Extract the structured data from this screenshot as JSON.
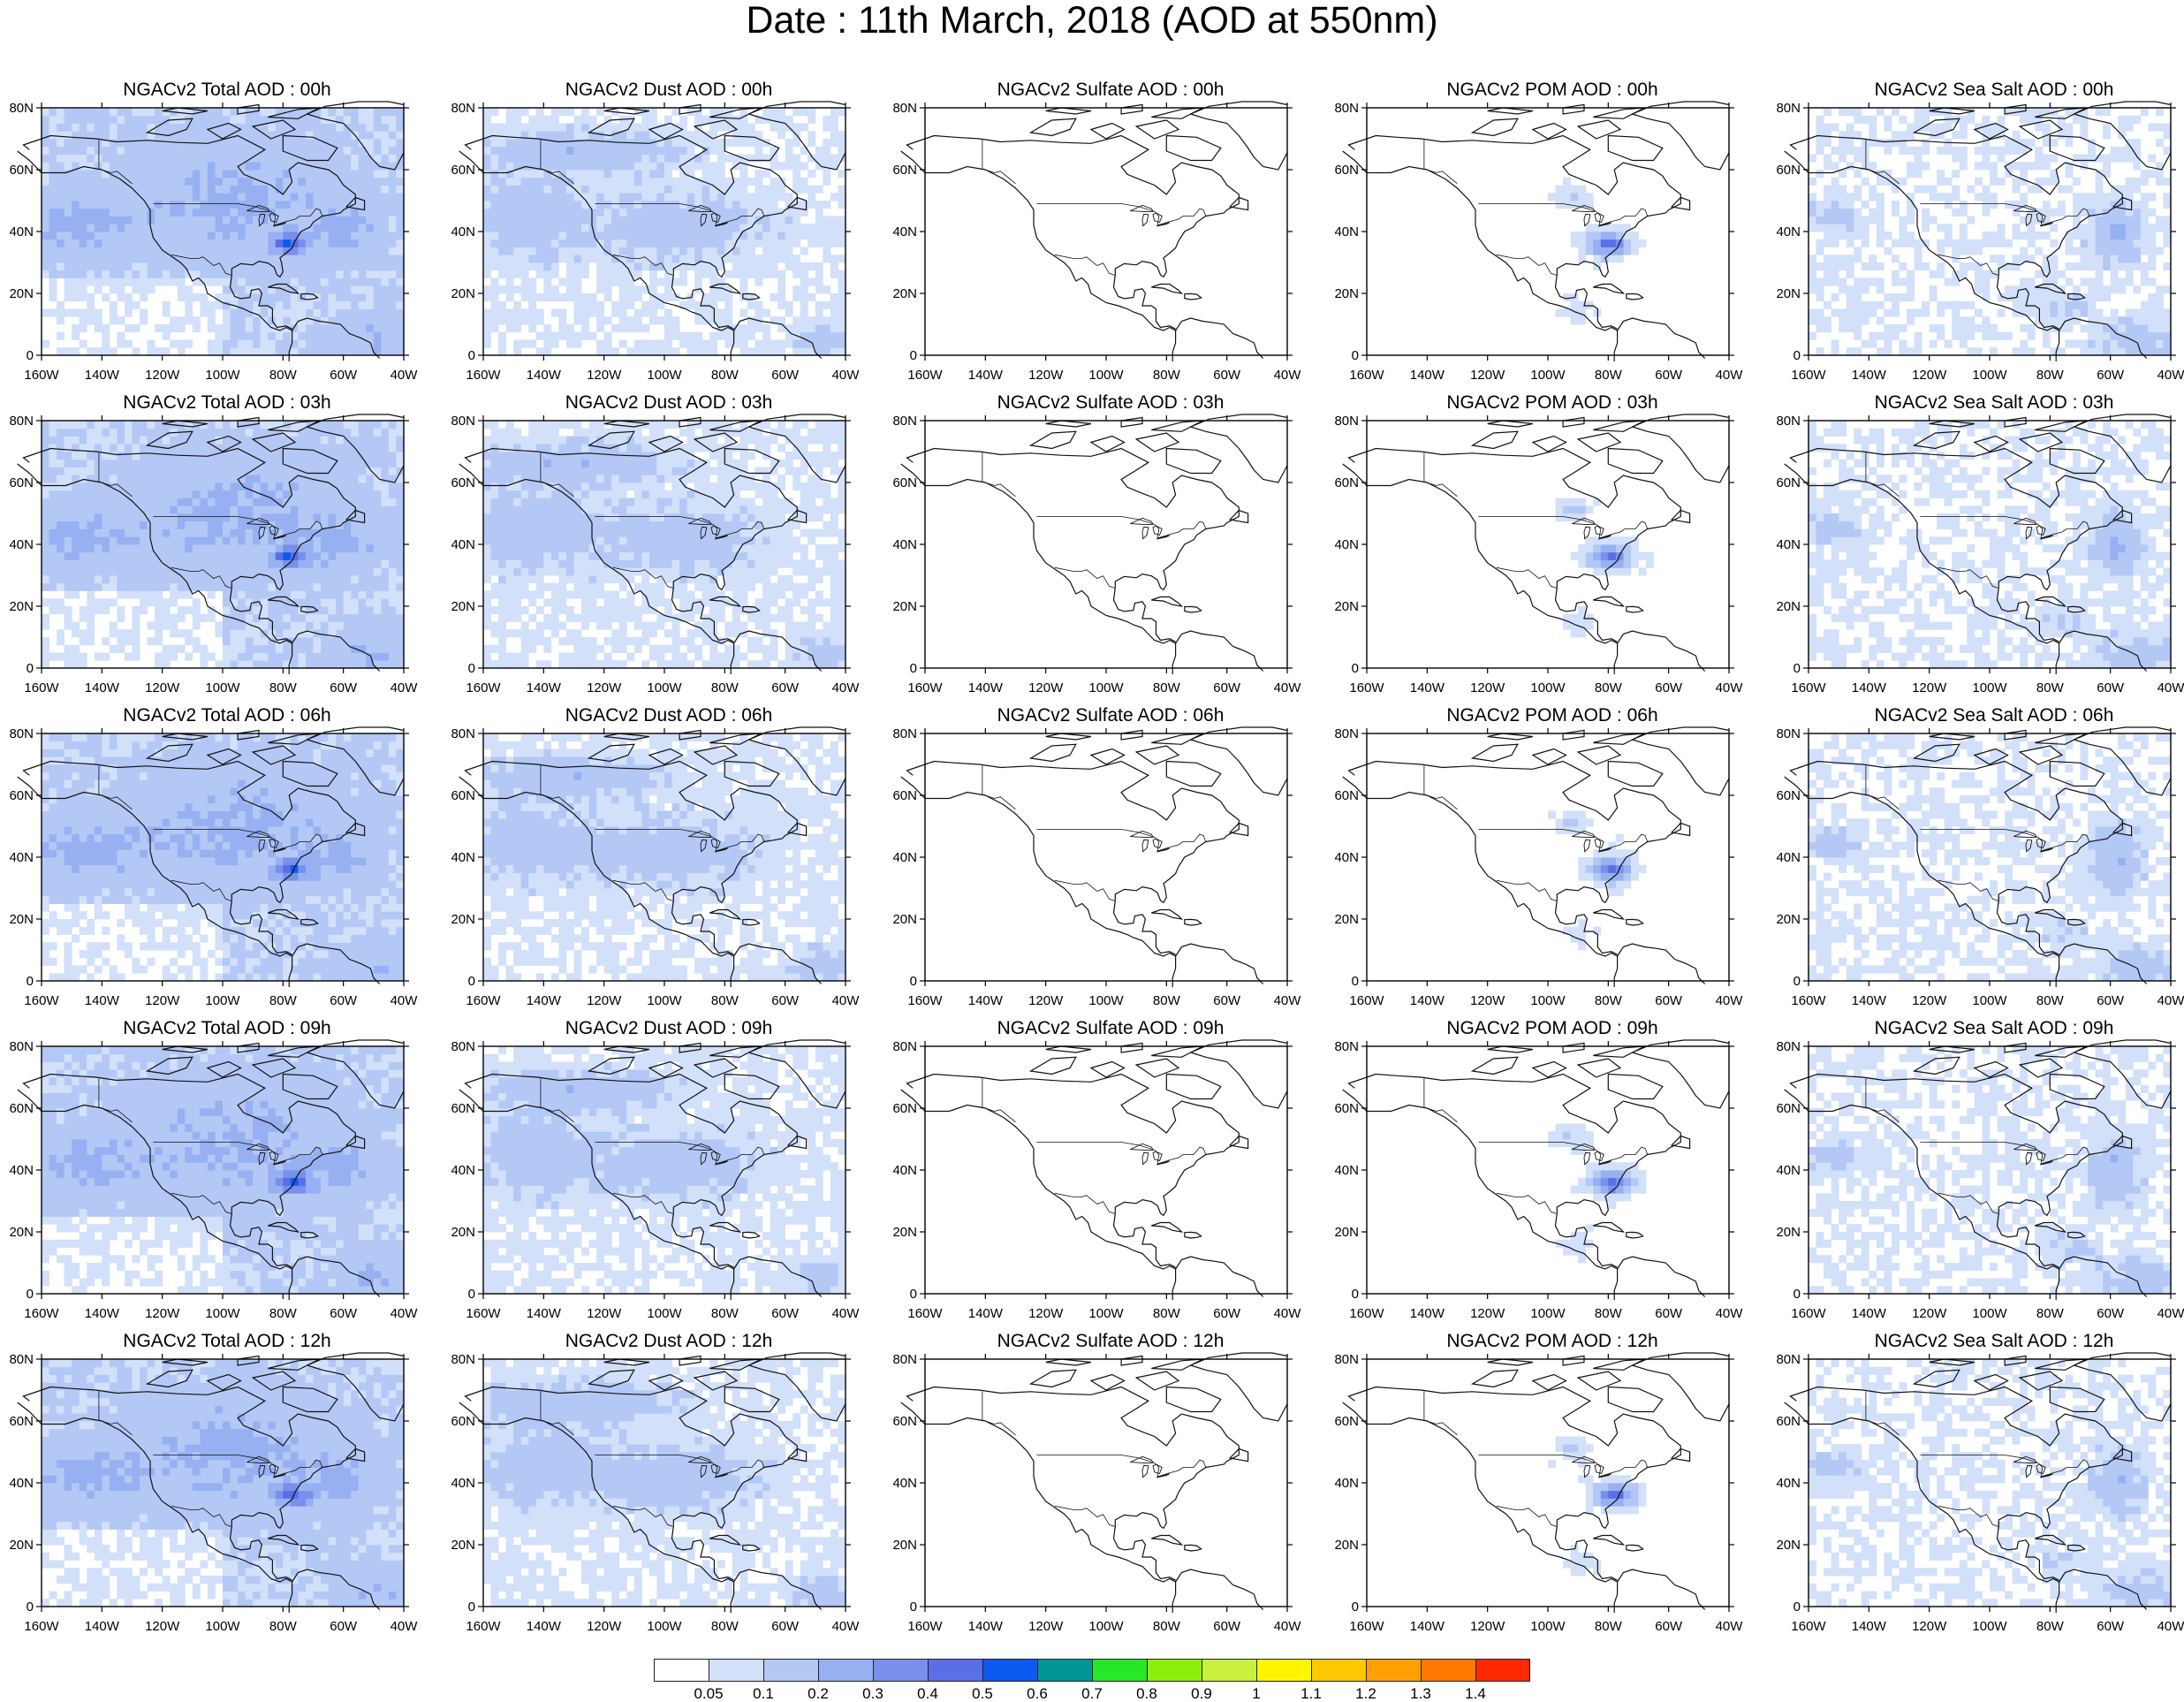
{
  "title": "Date : 11th March, 2018 (AOD at 550nm)",
  "lat_ticks": [
    "0",
    "20N",
    "40N",
    "60N",
    "80N"
  ],
  "lon_ticks": [
    "160W",
    "140W",
    "120W",
    "100W",
    "80W",
    "60W",
    "40W"
  ],
  "domain": {
    "lon_range": [
      -160,
      -40
    ],
    "lat_range": [
      0,
      80
    ]
  },
  "panels": [
    [
      {
        "title": "NGACv2 Total AOD : 00h",
        "species": "total"
      },
      {
        "title": "NGACv2 Dust AOD : 00h",
        "species": "dust"
      },
      {
        "title": "NGACv2 Sulfate AOD : 00h",
        "species": "sulfate"
      },
      {
        "title": "NGACv2 POM AOD : 00h",
        "species": "pom"
      },
      {
        "title": "NGACv2 Sea Salt AOD : 00h",
        "species": "seasalt"
      }
    ],
    [
      {
        "title": "NGACv2 Total AOD : 03h",
        "species": "total"
      },
      {
        "title": "NGACv2 Dust AOD : 03h",
        "species": "dust"
      },
      {
        "title": "NGACv2 Sulfate AOD : 03h",
        "species": "sulfate"
      },
      {
        "title": "NGACv2 POM AOD : 03h",
        "species": "pom"
      },
      {
        "title": "NGACv2 Sea Salt AOD : 03h",
        "species": "seasalt"
      }
    ],
    [
      {
        "title": "NGACv2 Total AOD : 06h",
        "species": "total"
      },
      {
        "title": "NGACv2 Dust AOD : 06h",
        "species": "dust"
      },
      {
        "title": "NGACv2 Sulfate AOD : 06h",
        "species": "sulfate"
      },
      {
        "title": "NGACv2 POM AOD : 06h",
        "species": "pom"
      },
      {
        "title": "NGACv2 Sea Salt AOD : 06h",
        "species": "seasalt"
      }
    ],
    [
      {
        "title": "NGACv2 Total AOD : 09h",
        "species": "total"
      },
      {
        "title": "NGACv2 Dust AOD : 09h",
        "species": "dust"
      },
      {
        "title": "NGACv2 Sulfate AOD : 09h",
        "species": "sulfate"
      },
      {
        "title": "NGACv2 POM AOD : 09h",
        "species": "pom"
      },
      {
        "title": "NGACv2 Sea Salt  AOD : 09h",
        "species": "seasalt"
      }
    ],
    [
      {
        "title": "NGACv2 Total AOD  : 12h",
        "species": "total"
      },
      {
        "title": "NGACv2 Dust AOD : 12h",
        "species": "dust"
      },
      {
        "title": "NGACv2 Sulfate AOD : 12h",
        "species": "sulfate"
      },
      {
        "title": "NGACv2 POM  AOD : 12h",
        "species": "pom"
      },
      {
        "title": "NGACv2 Sea Salt  AOD : 12h",
        "species": "seasalt"
      }
    ]
  ],
  "colorbar": {
    "labels": [
      "0.05",
      "0.1",
      "0.2",
      "0.3",
      "0.4",
      "0.5",
      "0.6",
      "0.7",
      "0.8",
      "0.9",
      "1",
      "1.1",
      "1.2",
      "1.3",
      "1.4"
    ],
    "colors": [
      "#ffffff",
      "#d2e0fa",
      "#b4c8f6",
      "#96b0f2",
      "#7890ec",
      "#5a6ee6",
      "#0a5af0",
      "#009696",
      "#28e628",
      "#8cf00a",
      "#c8f03c",
      "#fff500",
      "#ffc800",
      "#ffa000",
      "#ff7800",
      "#ff2800"
    ]
  }
}
